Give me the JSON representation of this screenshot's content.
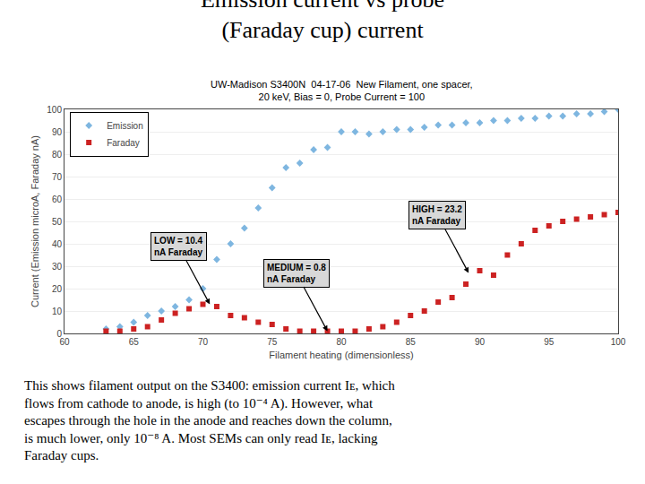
{
  "chart_data": {
    "type": "scatter",
    "title": "Emission current vs probe\n(Faraday cup) current",
    "subtitle": "UW-Madison S3400N  04-17-06  New Filament, one spacer,\n20 keV, Bias = 0, Probe Current = 100",
    "x_label": "Filament heating (dimensionless)",
    "y_label": "Current (Emission microA, Faraday nA)",
    "xlim": [
      60,
      100
    ],
    "ylim": [
      0,
      100
    ],
    "xticks": [
      60,
      65,
      70,
      75,
      80,
      85,
      90,
      95,
      100
    ],
    "yticks": [
      0,
      10,
      20,
      30,
      40,
      50,
      60,
      70,
      80,
      90,
      100
    ],
    "grid": "y",
    "legend": "upper left",
    "series": [
      {
        "name": "Emission",
        "color": "#7EB6E0",
        "marker": "diamond",
        "x": [
          63,
          64,
          65,
          66,
          67,
          68,
          69,
          70,
          71,
          72,
          73,
          74,
          75,
          76,
          77,
          78,
          79,
          80,
          81,
          82,
          83,
          84,
          85,
          86,
          87,
          88,
          89,
          90,
          91,
          92,
          93,
          94,
          95,
          96,
          97,
          98,
          99,
          100
        ],
        "values": [
          2,
          3,
          5,
          8,
          10,
          12,
          15,
          20,
          33,
          40,
          47,
          56,
          65,
          74,
          76,
          82,
          83,
          90,
          90,
          89,
          90,
          91,
          91,
          92,
          93,
          93,
          94,
          94,
          95,
          95,
          96,
          96,
          97,
          97,
          98,
          98,
          99,
          100
        ]
      },
      {
        "name": "Faraday",
        "color": "#CC2222",
        "marker": "square",
        "x": [
          63,
          64,
          65,
          66,
          67,
          68,
          69,
          70,
          71,
          72,
          73,
          74,
          75,
          76,
          77,
          78,
          79,
          80,
          81,
          82,
          83,
          84,
          85,
          86,
          87,
          88,
          89,
          90,
          91,
          92,
          93,
          94,
          95,
          96,
          97,
          98,
          99,
          100
        ],
        "values": [
          1,
          1,
          2,
          3,
          6,
          9,
          11,
          13,
          12,
          8,
          7,
          5,
          4,
          2,
          1,
          1,
          1,
          1,
          1,
          2,
          3,
          5,
          8,
          10,
          14,
          16,
          22,
          28,
          26,
          35,
          40,
          46,
          48,
          50,
          51,
          52,
          53,
          54
        ]
      }
    ],
    "annotations": [
      {
        "text": "LOW = 10.4\nnA Faraday",
        "x": 70.5,
        "y": 13
      },
      {
        "text": "MEDIUM = 0.8\nnA Faraday",
        "x": 79,
        "y": 1
      },
      {
        "text": "HIGH = 23.2\nnA Faraday",
        "x": 89.2,
        "y": 27
      }
    ],
    "body_text": [
      "This shows filament output on the S3400: emission current Iᴇ, which",
      "flows from cathode to anode, is high (to 10⁻⁴ A). However, what",
      "escapes through the hole in the anode and reaches down the column,",
      "is much lower, only 10⁻⁸ A. Most SEMs can only read Iᴇ, lacking",
      "Faraday cups."
    ]
  }
}
